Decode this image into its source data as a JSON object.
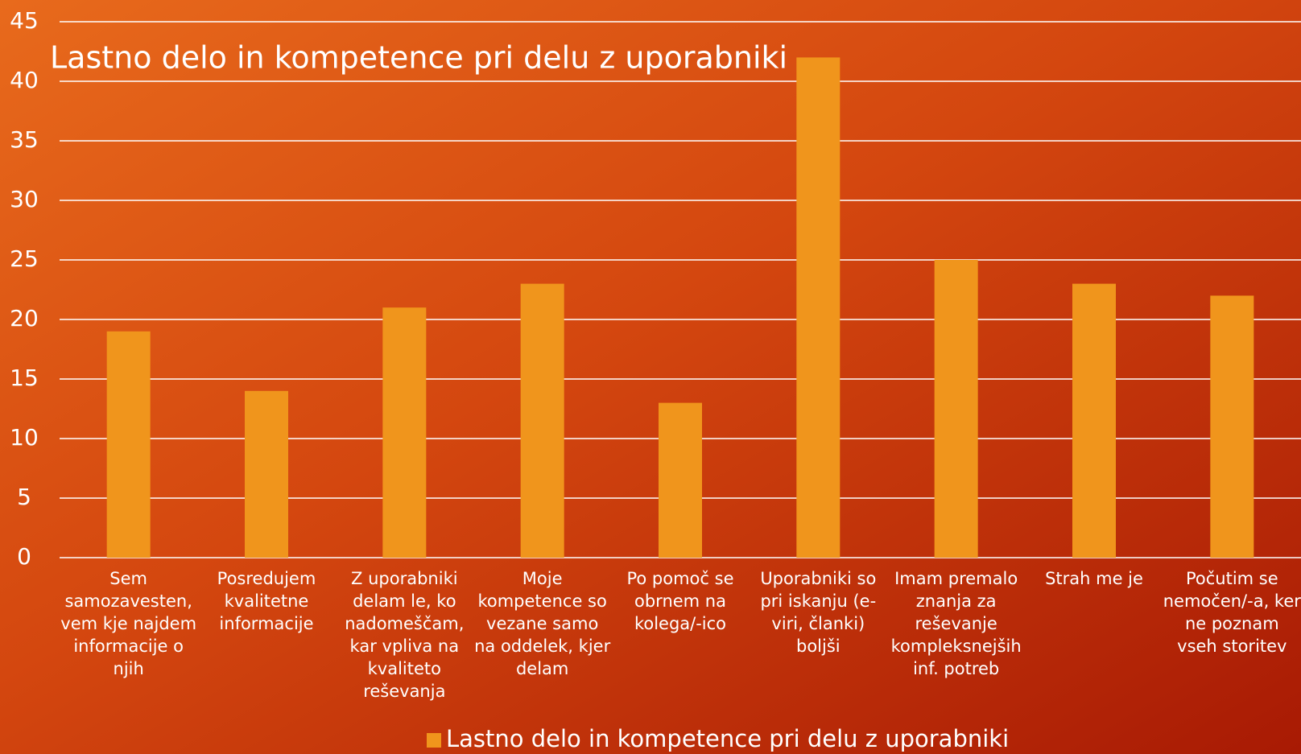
{
  "chart_data": {
    "type": "bar",
    "title": "Lastno delo in kompetence pri delu z uporabniki",
    "categories": [
      "Sem samozavesten, vem kje najdem informacije o njih",
      "Posredujem kvalitetne informacije",
      "Z uporabniki delam le, ko nadomeščam, kar vpliva na kvaliteto reševanja",
      "Moje kompetence so vezane samo na oddelek, kjer delam",
      "Po pomoč se obrnem na kolega/-ico",
      "Uporabniki so pri iskanju (e-viri, članki) boljši",
      "Imam premalo znanja za reševanje kompleksnejših inf. potreb",
      "Strah me je",
      "Počutim se nemočen/-a, ker ne poznam vseh storitev"
    ],
    "series": [
      {
        "name": "Lastno delo in kompetence pri delu z uporabniki",
        "color": "#f0951c",
        "values": [
          19,
          14,
          21,
          23,
          13,
          42,
          25,
          23,
          22
        ]
      }
    ],
    "ylim": [
      0,
      45
    ],
    "yticks": [
      0,
      5,
      10,
      15,
      20,
      25,
      30,
      35,
      40,
      45
    ],
    "grid": true,
    "legend": "bottom"
  }
}
